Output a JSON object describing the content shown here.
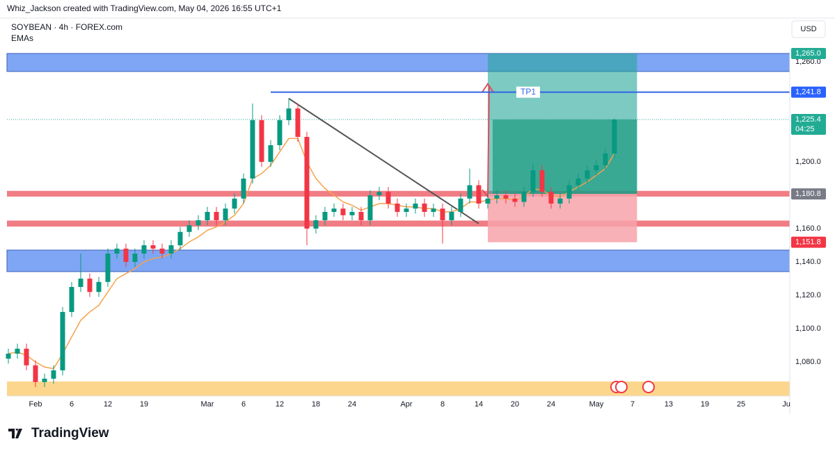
{
  "header": {
    "caption": "Whiz_Jackson created with TradingView.com, May 04, 2026 16:55 UTC+1",
    "symbol": "SOYBEAN · 4h · FOREX.com",
    "indicator": "EMAs",
    "currency": "USD"
  },
  "chart_data": {
    "type": "candlestick",
    "categories": [
      null,
      null,
      null,
      "Feb",
      null,
      null,
      null,
      "6",
      null,
      null,
      null,
      "12",
      null,
      null,
      null,
      "19",
      null,
      null,
      null,
      null,
      null,
      null,
      "Mar",
      null,
      null,
      null,
      "6",
      null,
      null,
      null,
      "12",
      null,
      null,
      null,
      "18",
      null,
      null,
      null,
      "24",
      null,
      null,
      null,
      null,
      null,
      "Apr",
      null,
      null,
      null,
      "8",
      null,
      null,
      null,
      "14",
      null,
      null,
      null,
      "20",
      null,
      null,
      null,
      "24",
      null,
      null,
      null,
      null,
      "May",
      null,
      null,
      null,
      "7",
      null,
      null,
      null,
      "13",
      null,
      null,
      null,
      "19",
      null,
      null,
      null,
      "25",
      null,
      null,
      null,
      null,
      "Ju"
    ],
    "open": [
      1082,
      1085,
      1088,
      1078,
      1068,
      1070,
      1075,
      1110,
      1125,
      1130,
      1122,
      1128,
      1145,
      1148,
      1140,
      1145,
      1150,
      1148,
      1145,
      1150,
      1158,
      1162,
      1165,
      1170,
      1165,
      1172,
      1178,
      1190,
      1225,
      1200,
      1210,
      1225,
      1232,
      1215,
      1160,
      1165,
      1170,
      1172,
      1168,
      1170,
      1165,
      1180,
      1182,
      1175,
      1170,
      1172,
      1175,
      1170,
      1172,
      1165,
      1170,
      1178,
      1186,
      1175,
      1178,
      1180,
      1178,
      1176,
      1182,
      1195,
      1182,
      1175,
      1178,
      1186,
      1190,
      1195,
      1198,
      1205,
      null,
      null,
      null,
      null,
      null,
      null,
      null,
      null,
      null,
      null,
      null,
      null,
      null,
      null,
      null,
      null,
      null,
      null,
      null
    ],
    "high": [
      1088,
      1091,
      1091,
      1081,
      1073,
      1078,
      1113,
      1128,
      1145,
      1133,
      1131,
      1148,
      1151,
      1151,
      1148,
      1153,
      1153,
      1151,
      1153,
      1161,
      1165,
      1168,
      1173,
      1173,
      1175,
      1181,
      1193,
      1235,
      1228,
      1213,
      1228,
      1238,
      1235,
      1218,
      1168,
      1173,
      1175,
      1175,
      1173,
      1173,
      1183,
      1185,
      1185,
      1178,
      1175,
      1178,
      1178,
      1175,
      1175,
      1173,
      1181,
      1196,
      1189,
      1181,
      1183,
      1183,
      1181,
      1185,
      1199,
      1198,
      1185,
      1181,
      1189,
      1193,
      1198,
      1201,
      1208,
      1226,
      null,
      null,
      null,
      null,
      null,
      null,
      null,
      null,
      null,
      null,
      null,
      null,
      null,
      null,
      null,
      null,
      null,
      null,
      null
    ],
    "low": [
      1079,
      1082,
      1075,
      1065,
      1065,
      1067,
      1072,
      1107,
      1122,
      1119,
      1119,
      1125,
      1142,
      1137,
      1137,
      1142,
      1145,
      1142,
      1142,
      1147,
      1155,
      1159,
      1162,
      1162,
      1162,
      1169,
      1175,
      1187,
      1197,
      1197,
      1207,
      1222,
      1212,
      1150,
      1157,
      1162,
      1167,
      1165,
      1165,
      1162,
      1162,
      1177,
      1172,
      1167,
      1167,
      1169,
      1167,
      1167,
      1151,
      1162,
      1167,
      1175,
      1172,
      1172,
      1175,
      1175,
      1173,
      1173,
      1179,
      1179,
      1172,
      1172,
      1175,
      1183,
      1187,
      1192,
      1195,
      1202,
      null,
      null,
      null,
      null,
      null,
      null,
      null,
      null,
      null,
      null,
      null,
      null,
      null,
      null,
      null,
      null,
      null,
      null,
      null
    ],
    "close": [
      1085,
      1088,
      1078,
      1068,
      1070,
      1075,
      1110,
      1125,
      1130,
      1122,
      1128,
      1145,
      1148,
      1140,
      1145,
      1150,
      1148,
      1145,
      1150,
      1158,
      1162,
      1165,
      1170,
      1165,
      1172,
      1178,
      1190,
      1225,
      1200,
      1210,
      1225,
      1232,
      1215,
      1160,
      1165,
      1170,
      1172,
      1168,
      1170,
      1165,
      1180,
      1182,
      1175,
      1170,
      1172,
      1175,
      1170,
      1172,
      1165,
      1170,
      1178,
      1186,
      1175,
      1178,
      1180,
      1178,
      1176,
      1182,
      1195,
      1182,
      1175,
      1178,
      1186,
      1190,
      1195,
      1198,
      1205,
      1225.4,
      null,
      null,
      null,
      null,
      null,
      null,
      null,
      null,
      null,
      null,
      null,
      null,
      null,
      null,
      null,
      null,
      null,
      null,
      null
    ],
    "up_color": "#089981",
    "down_color": "#f23645",
    "ema": {
      "color": "#f7a14a",
      "values": [
        1085,
        1086,
        1084,
        1080,
        1077,
        1076,
        1085,
        1095,
        1105,
        1110,
        1114,
        1122,
        1130,
        1133,
        1136,
        1140,
        1142,
        1143,
        1145,
        1148,
        1152,
        1155,
        1159,
        1161,
        1164,
        1168,
        1175,
        1190,
        1193,
        1198,
        1206,
        1214,
        1214,
        1200,
        1190,
        1184,
        1180,
        1176,
        1174,
        1171,
        1173,
        1175,
        1175,
        1174,
        1173,
        1173,
        1172,
        1172,
        1170,
        1170,
        1172,
        1176,
        1176,
        1177,
        1178,
        1178,
        1177,
        1179,
        1184,
        1183,
        1180,
        1179,
        1182,
        1185,
        1188,
        1192,
        1196,
        1205,
        null,
        null,
        null,
        null,
        null,
        null,
        null,
        null,
        null,
        null,
        null,
        null,
        null,
        null,
        null,
        null,
        null,
        null,
        null
      ]
    },
    "ylim": [
      1059.6,
      1267.9
    ],
    "yticks": [
      {
        "value": 1080,
        "label": "1,080.0"
      },
      {
        "value": 1100,
        "label": "1,100.0"
      },
      {
        "value": 1120,
        "label": "1,120.0"
      },
      {
        "value": 1140,
        "label": "1,140.0"
      },
      {
        "value": 1160,
        "label": "1,160.0"
      },
      {
        "value": 1200,
        "label": "1,200.0"
      },
      {
        "value": 1260,
        "label": "1,260.0"
      }
    ],
    "zones": [
      {
        "from": 1254.2,
        "to": 1265.0,
        "color": "#7ea6f4"
      },
      {
        "from": 1179.2,
        "to": 1182.6,
        "color": "#f07c84"
      },
      {
        "from": 1161.2,
        "to": 1164.8,
        "color": "#f07c84"
      },
      {
        "from": 1134.2,
        "to": 1147.1,
        "color": "#7ea6f4"
      },
      {
        "from": 1059.6,
        "to": 1068.3,
        "color": "#fcd68c"
      }
    ],
    "tp_line": {
      "label": "TP1",
      "value": 1241.8,
      "x": 29,
      "color": "#2f63e6"
    },
    "trendline": {
      "x": [
        31,
        52
      ],
      "y": [
        1238,
        1163
      ],
      "color": "#555"
    },
    "position": {
      "x": [
        53,
        69.5
      ],
      "entry": 1180.8,
      "target": 1265.0,
      "stop": 1151.8
    },
    "price_labels": [
      {
        "value": 1265.0,
        "label": "1,265.0",
        "color": "#22ab94"
      },
      {
        "value": 1241.8,
        "label": "1,241.8",
        "color": "#2962ff"
      },
      {
        "value": 1225.4,
        "label": "1,225.4",
        "color": "#22ab94"
      },
      {
        "value": 1180.8,
        "label": "1,180.8",
        "color": "#787b86"
      },
      {
        "value": 1151.8,
        "label": "1,151.8",
        "color": "#f23645"
      }
    ],
    "countdown": "04:25"
  },
  "footer": {
    "brand": "TradingView"
  }
}
